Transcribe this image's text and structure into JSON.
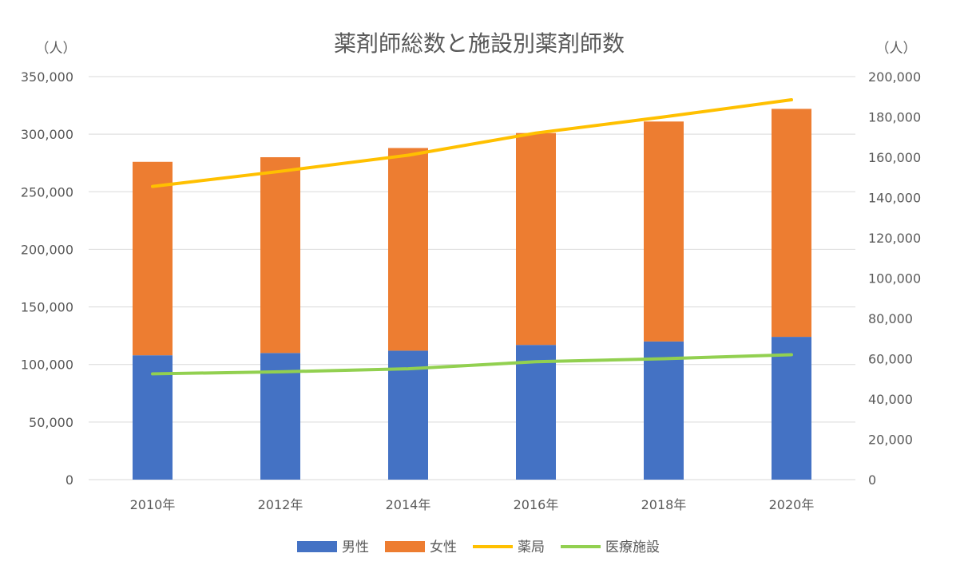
{
  "chart_data": {
    "type": "bar",
    "subtype": "stacked-bar-with-lines-dual-axis",
    "title": "薬剤師総数と施設別薬剤師数",
    "categories": [
      "2010年",
      "2012年",
      "2014年",
      "2016年",
      "2018年",
      "2020年"
    ],
    "y_left": {
      "unit_label": "（人）",
      "ylim": [
        0,
        350000
      ],
      "ticks": [
        "0",
        "50,000",
        "100,000",
        "150,000",
        "200,000",
        "250,000",
        "300,000",
        "350,000"
      ]
    },
    "y_right": {
      "unit_label": "（人）",
      "ylim": [
        0,
        200000
      ],
      "ticks": [
        "0",
        "20,000",
        "40,000",
        "60,000",
        "80,000",
        "100,000",
        "120,000",
        "140,000",
        "160,000",
        "180,000",
        "200,000"
      ]
    },
    "series": [
      {
        "name": "男性",
        "kind": "bar",
        "axis": "left",
        "color": "#4472C4",
        "values": [
          108000,
          110000,
          112000,
          117000,
          120000,
          124000
        ]
      },
      {
        "name": "女性",
        "kind": "bar",
        "axis": "left",
        "color": "#ED7D31",
        "values": [
          168000,
          170000,
          176000,
          184000,
          191000,
          198000
        ]
      },
      {
        "name": "薬局",
        "kind": "line",
        "axis": "right",
        "color": "#FFC000",
        "values": [
          145500,
          153000,
          161000,
          172000,
          180000,
          188500
        ]
      },
      {
        "name": "医療施設",
        "kind": "line",
        "axis": "right",
        "color": "#92D050",
        "values": [
          52500,
          53500,
          55000,
          58500,
          60000,
          62000
        ]
      }
    ],
    "grid": true,
    "legend_position": "bottom"
  }
}
